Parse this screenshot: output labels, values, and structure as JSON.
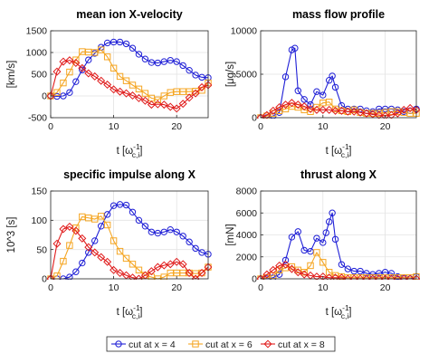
{
  "colors": {
    "series": [
      "#1f1fd6",
      "#f5a623",
      "#e01b1b"
    ]
  },
  "legend": {
    "entries": [
      {
        "label": "cut at x = 4",
        "marker": "circle"
      },
      {
        "label": "cut at x = 6",
        "marker": "square"
      },
      {
        "label": "cut at x = 8",
        "marker": "diamond"
      }
    ]
  },
  "chart_data": [
    {
      "type": "line",
      "title": "mean ion X-velocity",
      "ylabel": "[km/s]",
      "xlabel": "t [ω_c,i^-1]",
      "xlim": [
        0,
        25
      ],
      "ylim": [
        -500,
        1500
      ],
      "xticks": [
        0,
        10,
        20
      ],
      "yticks": [
        -500,
        0,
        500,
        1000,
        1500
      ],
      "grid": true,
      "series": [
        {
          "name": "cut at x = 4",
          "x": [
            0,
            1,
            2,
            3,
            4,
            5,
            6,
            7,
            8,
            9,
            10,
            11,
            12,
            13,
            14,
            15,
            16,
            17,
            18,
            19,
            20,
            21,
            22,
            23,
            24,
            25
          ],
          "values": [
            0,
            -10,
            0,
            80,
            330,
            600,
            830,
            980,
            1120,
            1220,
            1240,
            1240,
            1200,
            1100,
            960,
            850,
            770,
            760,
            790,
            820,
            790,
            700,
            590,
            480,
            430,
            420
          ]
        },
        {
          "name": "cut at x = 6",
          "x": [
            0,
            1,
            2,
            3,
            4,
            5,
            6,
            7,
            8,
            9,
            10,
            11,
            12,
            13,
            14,
            15,
            16,
            17,
            18,
            19,
            20,
            21,
            22,
            23,
            24,
            25
          ],
          "values": [
            0,
            80,
            300,
            550,
            830,
            1020,
            1010,
            1000,
            1060,
            900,
            640,
            450,
            350,
            250,
            160,
            60,
            -50,
            -90,
            0,
            80,
            100,
            100,
            100,
            110,
            130,
            300
          ]
        },
        {
          "name": "cut at x = 8",
          "x": [
            0,
            1,
            2,
            3,
            4,
            5,
            6,
            7,
            8,
            9,
            10,
            11,
            12,
            13,
            14,
            15,
            16,
            17,
            18,
            19,
            20,
            21,
            22,
            23,
            24,
            25
          ],
          "values": [
            0,
            560,
            790,
            820,
            760,
            640,
            520,
            450,
            350,
            260,
            150,
            100,
            60,
            10,
            -50,
            -110,
            -200,
            -190,
            -200,
            -250,
            -290,
            -180,
            -40,
            60,
            200,
            250
          ]
        }
      ]
    },
    {
      "type": "line",
      "title": "mass flow profile",
      "ylabel": "[μg/s]",
      "xlabel": "t [ω_c,i^-1]",
      "xlim": [
        0,
        25
      ],
      "ylim": [
        0,
        10000
      ],
      "xticks": [
        0,
        10,
        20
      ],
      "yticks": [
        0,
        5000,
        10000
      ],
      "grid": true,
      "series": [
        {
          "name": "cut at x = 4",
          "x": [
            0,
            1,
            2,
            3,
            4,
            5,
            5.5,
            6,
            7,
            8,
            9,
            10,
            11,
            11.5,
            12,
            13,
            14,
            15,
            16,
            17,
            18,
            19,
            20,
            21,
            22,
            23,
            24,
            25
          ],
          "values": [
            0,
            0,
            200,
            600,
            4700,
            7800,
            8000,
            3100,
            2100,
            1500,
            3000,
            2600,
            4300,
            4800,
            3500,
            1400,
            1000,
            1000,
            1000,
            800,
            700,
            1000,
            1000,
            1000,
            900,
            700,
            800,
            1000
          ]
        },
        {
          "name": "cut at x = 6",
          "x": [
            0,
            1,
            2,
            3,
            4,
            5,
            6,
            7,
            8,
            9,
            10,
            11,
            12,
            13,
            14,
            15,
            16,
            17,
            18,
            19,
            20,
            21,
            22,
            23,
            24,
            25
          ],
          "values": [
            0,
            200,
            500,
            800,
            1000,
            1300,
            1200,
            900,
            700,
            1200,
            1700,
            1800,
            1000,
            800,
            700,
            900,
            600,
            500,
            500,
            500,
            600,
            700,
            700,
            600,
            500,
            500
          ]
        },
        {
          "name": "cut at x = 8",
          "x": [
            0,
            1,
            2,
            3,
            4,
            5,
            6,
            7,
            8,
            9,
            10,
            11,
            12,
            13,
            14,
            15,
            16,
            17,
            18,
            19,
            20,
            21,
            22,
            23,
            24,
            25
          ],
          "values": [
            0,
            300,
            800,
            1200,
            1500,
            1700,
            1500,
            1300,
            1000,
            900,
            900,
            900,
            800,
            800,
            700,
            700,
            600,
            500,
            400,
            300,
            200,
            300,
            500,
            900,
            1100,
            900
          ]
        }
      ]
    },
    {
      "type": "line",
      "title": "specific impulse along X",
      "ylabel": "10^3 [s]",
      "xlabel": "t [ω_c,i^-1]",
      "xlim": [
        0,
        25
      ],
      "ylim": [
        0,
        150
      ],
      "xticks": [
        0,
        10,
        20
      ],
      "yticks": [
        0,
        50,
        100,
        150
      ],
      "grid": true,
      "series": [
        {
          "name": "cut at x = 4",
          "x": [
            0,
            1,
            2,
            3,
            4,
            5,
            6,
            7,
            8,
            9,
            10,
            11,
            12,
            13,
            14,
            15,
            16,
            17,
            18,
            19,
            20,
            21,
            22,
            23,
            24,
            25
          ],
          "values": [
            0,
            0,
            0,
            3,
            12,
            27,
            45,
            65,
            90,
            110,
            125,
            127,
            126,
            114,
            100,
            90,
            80,
            78,
            80,
            84,
            80,
            73,
            63,
            52,
            45,
            42
          ]
        },
        {
          "name": "cut at x = 6",
          "x": [
            0,
            1,
            2,
            3,
            4,
            5,
            6,
            7,
            8,
            9,
            10,
            11,
            12,
            13,
            14,
            15,
            16,
            17,
            18,
            19,
            20,
            21,
            22,
            23,
            24,
            25
          ],
          "values": [
            0,
            5,
            30,
            57,
            87,
            106,
            104,
            102,
            107,
            92,
            65,
            47,
            35,
            25,
            15,
            6,
            3,
            0,
            3,
            10,
            10,
            10,
            10,
            9,
            10,
            20
          ]
        },
        {
          "name": "cut at x = 8",
          "x": [
            0,
            1,
            2,
            3,
            4,
            5,
            6,
            7,
            8,
            9,
            10,
            11,
            12,
            13,
            14,
            15,
            16,
            17,
            18,
            19,
            20,
            21,
            22,
            23,
            24,
            25
          ],
          "values": [
            0,
            60,
            85,
            89,
            82,
            69,
            54,
            45,
            37,
            29,
            15,
            10,
            6,
            2,
            0,
            6,
            13,
            20,
            23,
            25,
            29,
            25,
            10,
            0,
            10,
            20
          ]
        }
      ]
    },
    {
      "type": "line",
      "title": "thrust along X",
      "ylabel": "[mN]",
      "xlabel": "t [ω_c,i^-1]",
      "xlim": [
        0,
        25
      ],
      "ylim": [
        0,
        8000
      ],
      "xticks": [
        0,
        10,
        20
      ],
      "yticks": [
        0,
        2000,
        4000,
        6000,
        8000
      ],
      "grid": true,
      "series": [
        {
          "name": "cut at x = 4",
          "x": [
            0,
            1,
            2,
            3,
            4,
            5,
            6,
            7,
            8,
            9,
            10,
            10.5,
            11,
            11.5,
            12,
            13,
            14,
            15,
            16,
            17,
            18,
            19,
            20,
            21,
            22,
            23,
            24,
            25
          ],
          "values": [
            0,
            0,
            100,
            400,
            1700,
            3800,
            4300,
            2600,
            2500,
            3700,
            3300,
            4200,
            5200,
            6000,
            3600,
            1300,
            900,
            700,
            700,
            500,
            400,
            500,
            600,
            500,
            200,
            100,
            0,
            200
          ]
        },
        {
          "name": "cut at x = 6",
          "x": [
            0,
            1,
            2,
            3,
            4,
            5,
            6,
            7,
            8,
            9,
            10,
            11,
            12,
            13,
            14,
            15,
            16,
            17,
            18,
            19,
            20,
            21,
            22,
            23,
            24,
            25
          ],
          "values": [
            0,
            100,
            300,
            800,
            1000,
            1100,
            800,
            600,
            1200,
            2400,
            1500,
            600,
            300,
            200,
            100,
            100,
            100,
            100,
            100,
            100,
            100,
            100,
            100,
            100,
            100,
            200
          ]
        },
        {
          "name": "cut at x = 8",
          "x": [
            0,
            1,
            2,
            3,
            4,
            5,
            6,
            7,
            8,
            9,
            10,
            11,
            12,
            13,
            14,
            15,
            16,
            17,
            18,
            19,
            20,
            21,
            22,
            23,
            24,
            25
          ],
          "values": [
            0,
            400,
            800,
            1200,
            1300,
            900,
            600,
            400,
            300,
            200,
            200,
            100,
            100,
            100,
            0,
            0,
            0,
            0,
            0,
            0,
            0,
            0,
            0,
            0,
            0,
            0
          ]
        }
      ]
    }
  ]
}
